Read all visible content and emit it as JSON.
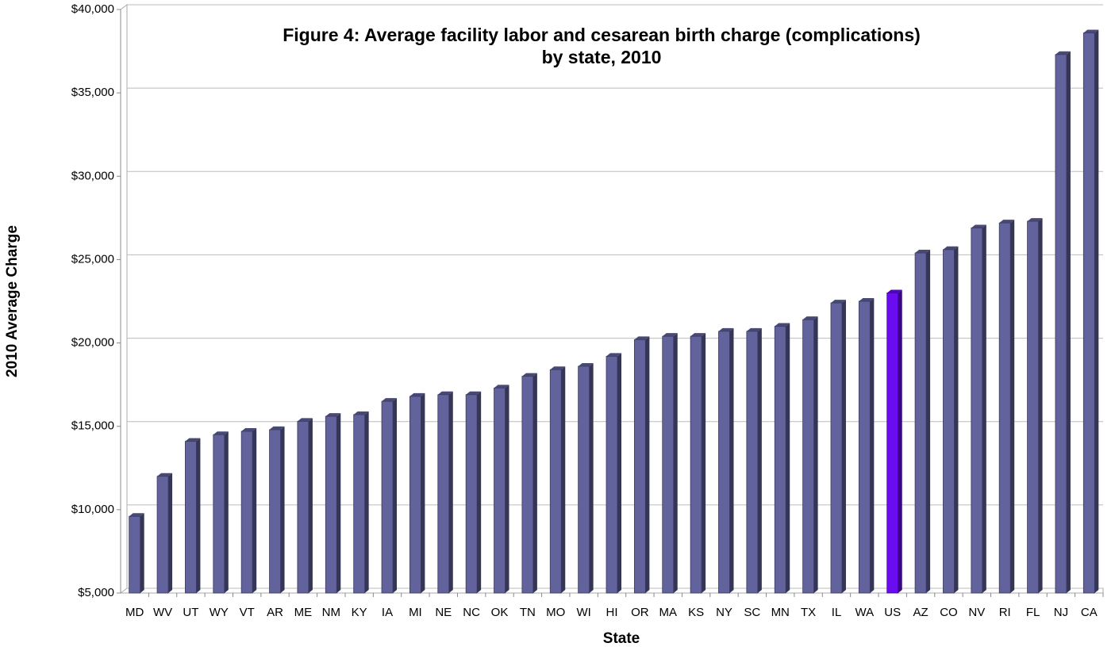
{
  "chart_data": {
    "type": "bar3d",
    "title": [
      "Figure 4: Average facility labor and cesarean birth charge (complications)",
      "by state, 2010"
    ],
    "xlabel": "State",
    "ylabel": "2010 Average Charge",
    "categories": [
      "MD",
      "WV",
      "UT",
      "WY",
      "VT",
      "AR",
      "ME",
      "NM",
      "KY",
      "IA",
      "MI",
      "NE",
      "NC",
      "OK",
      "TN",
      "MO",
      "WI",
      "HI",
      "OR",
      "MA",
      "KS",
      "NY",
      "SC",
      "MN",
      "TX",
      "IL",
      "WA",
      "US",
      "AZ",
      "CO",
      "NV",
      "RI",
      "FL",
      "NJ",
      "CA"
    ],
    "values": [
      9600,
      12000,
      14100,
      14500,
      14700,
      14800,
      15300,
      15600,
      15700,
      16500,
      16800,
      16900,
      16900,
      17300,
      18000,
      18400,
      18600,
      19200,
      20200,
      20400,
      20400,
      20700,
      20700,
      21000,
      21400,
      22400,
      22500,
      23000,
      25400,
      25600,
      26900,
      27200,
      27300,
      37300,
      38600
    ],
    "colors": [
      "#62629c",
      "#62629c",
      "#62629c",
      "#62629c",
      "#62629c",
      "#62629c",
      "#62629c",
      "#62629c",
      "#62629c",
      "#62629c",
      "#62629c",
      "#62629c",
      "#62629c",
      "#62629c",
      "#62629c",
      "#62629c",
      "#62629c",
      "#62629c",
      "#62629c",
      "#62629c",
      "#62629c",
      "#62629c",
      "#62629c",
      "#62629c",
      "#62629c",
      "#62629c",
      "#62629c",
      "#6a0cf0",
      "#62629c",
      "#62629c",
      "#62629c",
      "#62629c",
      "#62629c",
      "#62629c",
      "#62629c"
    ],
    "ylim": [
      5000,
      40000
    ],
    "yticks": [
      {
        "value": 5000,
        "label": "$5,000"
      },
      {
        "value": 10000,
        "label": "$10,000"
      },
      {
        "value": 15000,
        "label": "$15,000"
      },
      {
        "value": 20000,
        "label": "$20,000"
      },
      {
        "value": 25000,
        "label": "$25,000"
      },
      {
        "value": 30000,
        "label": "$30,000"
      },
      {
        "value": 35000,
        "label": "$35,000"
      },
      {
        "value": 40000,
        "label": "$40,000"
      }
    ],
    "grid": true
  }
}
